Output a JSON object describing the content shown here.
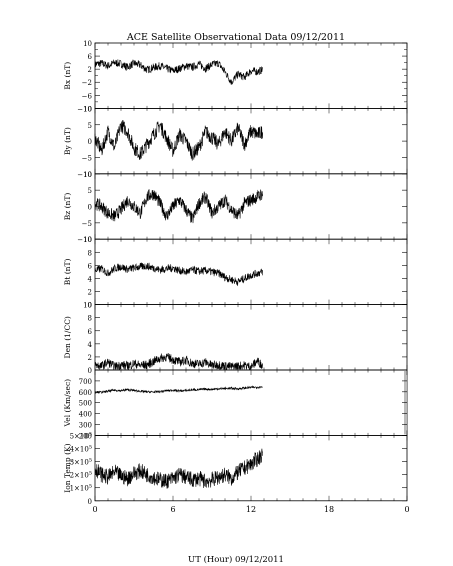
{
  "figure": {
    "title": "ACE Satellite Observational Data   09/12/2011",
    "x_axis_label": "UT (Hour)   09/12/2011",
    "x_ticks": [
      "0",
      "6",
      "12",
      "18",
      "0"
    ],
    "x_range_hours": [
      0,
      24
    ],
    "data_end_hour": 12.9
  },
  "chart_data": [
    {
      "type": "line",
      "ylabel": "Bx (nT)",
      "ylim": [
        -10,
        10
      ],
      "yticks": [
        10,
        6,
        2,
        -2,
        -6,
        -10
      ],
      "ytick_labels": [
        "10",
        "6",
        "2",
        "−2",
        "−6",
        "−10"
      ],
      "minor_yticks": [
        8,
        4,
        0,
        -4,
        -8
      ],
      "x": [
        0,
        0.5,
        1,
        1.5,
        2,
        2.5,
        3,
        3.5,
        4,
        4.5,
        5,
        5.5,
        6,
        6.5,
        7,
        7.5,
        8,
        8.5,
        9,
        9.5,
        10,
        10.5,
        11,
        11.5,
        12,
        12.5,
        12.9
      ],
      "y": [
        3.5,
        3.8,
        3.0,
        4.0,
        3.6,
        2.6,
        3.8,
        3.2,
        1.8,
        2.5,
        3.0,
        2.2,
        1.5,
        2.2,
        3.0,
        2.6,
        3.6,
        2.2,
        3.4,
        3.8,
        1.2,
        -2.0,
        0.5,
        -0.5,
        1.5,
        1.2,
        1.8
      ],
      "noise": 1.2
    },
    {
      "type": "line",
      "ylabel": "By (nT)",
      "ylim": [
        -10,
        10
      ],
      "yticks": [
        10,
        5,
        0,
        -5,
        -10
      ],
      "ytick_labels": [
        "10",
        "5",
        "0",
        "−5",
        "−10"
      ],
      "minor_yticks": [],
      "x": [
        0,
        0.5,
        1,
        1.5,
        2,
        2.5,
        3,
        3.5,
        4,
        4.5,
        5,
        5.5,
        6,
        6.5,
        7,
        7.5,
        8,
        8.5,
        9,
        9.5,
        10,
        10.5,
        11,
        11.5,
        12,
        12.5,
        12.9
      ],
      "y": [
        1,
        -3,
        3,
        -2,
        5,
        3,
        -2,
        -4,
        -1,
        2,
        5,
        1,
        -3,
        2,
        0,
        -4,
        -2,
        3,
        1,
        -1,
        3,
        0,
        4,
        -1,
        3,
        2,
        3
      ],
      "noise": 2.2
    },
    {
      "type": "line",
      "ylabel": "Bz (nT)",
      "ylim": [
        -10,
        10
      ],
      "yticks": [
        10,
        5,
        0,
        -5,
        -10
      ],
      "ytick_labels": [
        "10",
        "5",
        "0",
        "−5",
        "−10"
      ],
      "minor_yticks": [],
      "x": [
        0,
        0.5,
        1,
        1.5,
        2,
        2.5,
        3,
        3.5,
        4,
        4.5,
        5,
        5.5,
        6,
        6.5,
        7,
        7.5,
        8,
        8.5,
        9,
        9.5,
        10,
        10.5,
        11,
        11.5,
        12,
        12.5,
        12.9
      ],
      "y": [
        1,
        0,
        -2,
        -3,
        -1,
        2,
        0,
        -2,
        3,
        4,
        1,
        -3,
        0,
        2,
        -1,
        -4,
        1,
        3,
        -2,
        0,
        2,
        -1,
        -3,
        1,
        2,
        3,
        4
      ],
      "noise": 2.0
    },
    {
      "type": "line",
      "ylabel": "Bt (nT)",
      "ylim": [
        0,
        10
      ],
      "yticks": [
        10,
        8,
        6,
        4,
        2,
        0
      ],
      "ytick_labels": [
        "10",
        "8",
        "6",
        "4",
        "2",
        "0"
      ],
      "minor_yticks": [],
      "x": [
        0,
        0.5,
        1,
        1.5,
        2,
        2.5,
        3,
        3.5,
        4,
        4.5,
        5,
        5.5,
        6,
        6.5,
        7,
        7.5,
        8,
        8.5,
        9,
        9.5,
        10,
        10.5,
        11,
        11.5,
        12,
        12.5,
        12.9
      ],
      "y": [
        5.2,
        5.5,
        4.8,
        5.5,
        5.8,
        5.4,
        5.6,
        5.8,
        5.9,
        5.6,
        5.3,
        5.5,
        5.6,
        5.2,
        5.0,
        5.3,
        5.1,
        5.2,
        5.0,
        4.8,
        4.2,
        3.8,
        3.5,
        4.0,
        4.5,
        4.8,
        5.0
      ],
      "noise": 0.6
    },
    {
      "type": "line",
      "ylabel": "Den (1/CC)",
      "ylim": [
        0,
        10
      ],
      "yticks": [
        10,
        8,
        6,
        4,
        2,
        0
      ],
      "ytick_labels": [
        "10",
        "8",
        "6",
        "4",
        "2",
        "0"
      ],
      "minor_yticks": [],
      "x": [
        0,
        0.5,
        1,
        1.5,
        2,
        2.5,
        3,
        3.5,
        4,
        4.5,
        5,
        5.5,
        6,
        6.5,
        7,
        7.5,
        8,
        8.5,
        9,
        9.5,
        10,
        10.5,
        11,
        11.5,
        12,
        12.5,
        12.9
      ],
      "y": [
        0.8,
        0.6,
        1.2,
        0.5,
        0.8,
        0.6,
        1.0,
        0.7,
        0.8,
        1.3,
        1.8,
        2.0,
        1.6,
        1.2,
        1.5,
        1.0,
        0.9,
        1.2,
        0.7,
        0.8,
        0.6,
        0.5,
        0.6,
        0.7,
        0.5,
        1.4,
        0.6
      ],
      "noise": 0.7
    },
    {
      "type": "line",
      "ylabel": "Vel (Km/sec)",
      "ylim": [
        200,
        800
      ],
      "yticks": [
        700,
        600,
        500,
        400,
        300,
        200
      ],
      "ytick_labels": [
        "700",
        "600",
        "500",
        "400",
        "300",
        "200"
      ],
      "minor_yticks": [],
      "x": [
        0,
        0.5,
        1,
        1.5,
        2,
        2.5,
        3,
        3.5,
        4,
        4.5,
        5,
        5.5,
        6,
        6.5,
        7,
        7.5,
        8,
        8.5,
        9,
        9.5,
        10,
        10.5,
        11,
        11.5,
        12,
        12.5,
        12.9
      ],
      "y": [
        600,
        595,
        605,
        615,
        610,
        620,
        612,
        605,
        600,
        598,
        602,
        610,
        615,
        608,
        612,
        618,
        620,
        625,
        622,
        628,
        630,
        632,
        628,
        635,
        640,
        642,
        645
      ],
      "noise": 10
    },
    {
      "type": "line",
      "ylabel": "Ion Temp (K)",
      "ylim": [
        0,
        500000
      ],
      "yticks": [
        500000,
        400000,
        300000,
        200000,
        100000,
        0
      ],
      "ytick_labels": [
        [
          "5",
          "5"
        ],
        [
          "4",
          "5"
        ],
        [
          "3",
          "5"
        ],
        [
          "2",
          "5"
        ],
        [
          "1",
          "5"
        ],
        [
          "0",
          ""
        ]
      ],
      "minor_yticks": [],
      "x": [
        0,
        0.5,
        1,
        1.5,
        2,
        2.5,
        3,
        3.5,
        4,
        4.5,
        5,
        5.5,
        6,
        6.5,
        7,
        7.5,
        8,
        8.5,
        9,
        9.5,
        10,
        10.5,
        11,
        11.5,
        12,
        12.5,
        12.9
      ],
      "y": [
        250000,
        200000,
        180000,
        220000,
        190000,
        170000,
        210000,
        230000,
        200000,
        180000,
        160000,
        150000,
        170000,
        200000,
        180000,
        160000,
        170000,
        150000,
        160000,
        180000,
        200000,
        170000,
        220000,
        250000,
        280000,
        320000,
        360000
      ],
      "noise": 60000
    }
  ]
}
